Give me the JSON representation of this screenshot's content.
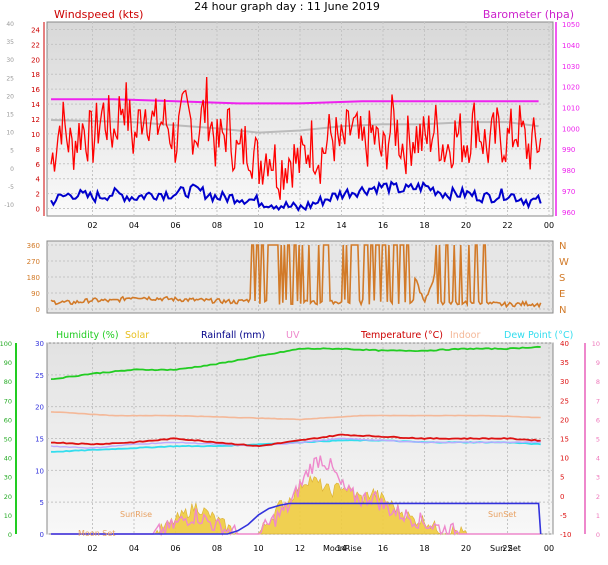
{
  "title": "24 hour graph day : 11 June 2019",
  "colors": {
    "wind": "#ff0000",
    "windAvg": "#0000cc",
    "baro": "#ee22ee",
    "baroGrey": "#bbbbbb",
    "dir": "#d27a28",
    "humidity": "#22cc22",
    "solar": "#e8c020",
    "rain": "#3333dd",
    "uv": "#ee88cc",
    "temp": "#dd1111",
    "indoor": "#f4b898",
    "dew": "#33ddee"
  },
  "chart_data": [
    {
      "type": "line",
      "ylabel": "Windspeed (kts)",
      "y2label": "Barometer (hpa)",
      "xticks": [
        "02",
        "04",
        "06",
        "08",
        "10",
        "12",
        "14",
        "16",
        "18",
        "20",
        "22",
        "00"
      ],
      "ylim": [
        -1,
        25
      ],
      "yticks": [
        "24",
        "22",
        "20",
        "18",
        "16",
        "14",
        "12",
        "10",
        "8",
        "6",
        "4",
        "2",
        "0"
      ],
      "y2lim": [
        958,
        1051
      ],
      "y2ticks": [
        "1050",
        "1040",
        "1030",
        "1020",
        "1010",
        "1000",
        "990",
        "980",
        "970",
        "960"
      ],
      "outer_ticks": [
        "40",
        "35",
        "30",
        "25",
        "20",
        "15",
        "10",
        "5",
        "0",
        "-5",
        "-10"
      ],
      "series": [
        {
          "role": "gust",
          "x": [
            0,
            0.5,
            1,
            1.5,
            2,
            2.5,
            3,
            3.5,
            4,
            4.5,
            5,
            5.5,
            6,
            6.5,
            7,
            7.5,
            8,
            8.5,
            9,
            9.5,
            10,
            10.5,
            11,
            11.5,
            12,
            12.5,
            13,
            13.5,
            14,
            14.5,
            15,
            15.5,
            16,
            16.5,
            17,
            17.5,
            18,
            18.5,
            19,
            19.5,
            20,
            20.5,
            21,
            21.5,
            22,
            22.5,
            23,
            23.5
          ],
          "y": [
            6,
            12,
            8,
            11,
            9,
            13,
            10,
            15,
            9,
            14,
            11,
            12,
            9,
            13,
            10,
            14,
            8,
            11,
            7,
            9,
            6,
            8,
            5,
            7,
            6,
            9,
            7,
            10,
            8,
            11,
            8,
            10,
            7,
            12,
            8,
            10,
            9,
            11,
            8,
            10,
            9,
            12,
            8,
            10,
            9,
            11,
            8,
            9
          ]
        },
        {
          "role": "average",
          "x": [
            0,
            1,
            2,
            3,
            4,
            5,
            6,
            7,
            8,
            9,
            10,
            11,
            12,
            13,
            14,
            15,
            16,
            17,
            18,
            19,
            20,
            21,
            22,
            23,
            23.5
          ],
          "y": [
            1,
            2,
            1.5,
            2,
            1.5,
            2,
            2,
            2.5,
            1.5,
            1.5,
            1,
            0.5,
            0,
            1,
            2,
            2.5,
            3,
            2.5,
            3,
            2,
            2,
            1.5,
            2,
            1,
            1
          ]
        },
        {
          "role": "barometer",
          "x": [
            0,
            3,
            6,
            9,
            12,
            15,
            18,
            21,
            23.5
          ],
          "y": [
            1014,
            1014,
            1013,
            1012,
            1012,
            1013,
            1013,
            1013,
            1013
          ]
        },
        {
          "role": "barometer-grey",
          "x": [
            0,
            4,
            8,
            10,
            12,
            14,
            16,
            18,
            20,
            22,
            23.5
          ],
          "y": [
            1004,
            1003,
            1000,
            998,
            999,
            1001,
            1002,
            1002,
            1003,
            1003,
            1001
          ]
        }
      ]
    },
    {
      "type": "scatter",
      "xticks": [
        "02",
        "04",
        "06",
        "08",
        "10",
        "12",
        "14",
        "16",
        "18",
        "20",
        "22",
        "00"
      ],
      "ylim": [
        0,
        360
      ],
      "yticks": [
        "360",
        "270",
        "180",
        "90",
        "0"
      ],
      "y2ticks": [
        "N",
        "W",
        "S",
        "E",
        "N"
      ],
      "series": [
        {
          "role": "direction",
          "x": [
            0,
            1,
            2,
            3,
            4,
            5,
            6,
            7,
            8,
            9,
            9.5,
            10,
            10.5,
            11,
            11.5,
            12,
            12.5,
            13,
            14,
            15,
            16,
            17,
            18,
            19,
            20,
            21,
            22,
            23,
            23.5
          ],
          "y": [
            40,
            35,
            50,
            45,
            70,
            60,
            55,
            50,
            45,
            40,
            50,
            60,
            50,
            45,
            40,
            360,
            50,
            360,
            360,
            360,
            360,
            360,
            30,
            360,
            20,
            30,
            25,
            30,
            25
          ]
        }
      ]
    },
    {
      "type": "line",
      "legend": [
        "Humidity (%)",
        "Solar",
        "Rainfall (mm)",
        "UV",
        "Temperature (°C)",
        "Indoor",
        "Dew Point (°C)"
      ],
      "xticks": [
        "02",
        "04",
        "06",
        "08",
        "10",
        "12",
        "14",
        "16",
        "18",
        "20",
        "22",
        "00"
      ],
      "rain_ticks": [
        "30",
        "25",
        "20",
        "15",
        "10",
        "5",
        "0"
      ],
      "humidity_ticks": [
        "100",
        "90",
        "80",
        "70",
        "60",
        "50",
        "40",
        "30",
        "20",
        "10",
        "0"
      ],
      "temp_ticks": [
        "40",
        "35",
        "30",
        "25",
        "20",
        "15",
        "10",
        "5",
        "0",
        "-5",
        "-10"
      ],
      "uv_ticks": [
        "10",
        "9",
        "8",
        "7",
        "6",
        "5",
        "4",
        "3",
        "2",
        "1",
        "0"
      ],
      "annotations": [
        "SunRise",
        "Moon Set",
        "SunSet",
        "Sun Set",
        "MoonRise"
      ],
      "series": [
        {
          "role": "humidity",
          "x": [
            0,
            2,
            4,
            6,
            8,
            10,
            12,
            14,
            16,
            18,
            20,
            22,
            23.5
          ],
          "y": [
            81,
            84,
            86,
            86,
            89,
            93,
            97,
            97,
            96,
            96,
            97,
            97,
            98
          ]
        },
        {
          "role": "indoor",
          "x": [
            0,
            3,
            6,
            9,
            12,
            15,
            18,
            21,
            23.5
          ],
          "y": [
            22,
            21,
            21,
            20.5,
            20,
            21,
            21,
            21,
            20.5
          ]
        },
        {
          "role": "temperature",
          "x": [
            0,
            2,
            4,
            6,
            8,
            10,
            12,
            14,
            16,
            18,
            20,
            22,
            23.5
          ],
          "y": [
            14,
            13.5,
            14,
            15,
            14,
            13,
            14.5,
            16,
            15.5,
            15,
            15,
            15,
            14.5
          ]
        },
        {
          "role": "temperature2",
          "x": [
            0,
            2,
            4,
            6,
            8,
            10,
            12,
            14,
            16,
            18,
            20,
            22,
            23.5
          ],
          "y": [
            13,
            12.5,
            13.5,
            14,
            13.5,
            13,
            14,
            15,
            14.5,
            14,
            14,
            14,
            14
          ]
        },
        {
          "role": "dewpoint",
          "x": [
            0,
            2,
            4,
            6,
            8,
            10,
            12,
            14,
            16,
            18,
            20,
            22,
            23.5
          ],
          "y": [
            11.5,
            12,
            12.5,
            13,
            13,
            13.5,
            14,
            14.5,
            14.5,
            14,
            14,
            14,
            13.5
          ]
        },
        {
          "role": "rainfall",
          "x": [
            0,
            8.5,
            9,
            9.5,
            10,
            10.5,
            11,
            11.5,
            23.5,
            23.6
          ],
          "y": [
            0,
            0,
            0.5,
            1.5,
            3,
            4,
            4.5,
            4.8,
            4.8,
            0
          ]
        },
        {
          "role": "solar",
          "x": [
            0,
            5,
            5.5,
            6,
            6.5,
            7,
            7.5,
            8,
            8.5,
            9,
            9.5,
            10,
            10.5,
            11,
            11.5,
            12,
            12.5,
            13,
            13.5,
            14,
            14.5,
            15,
            15.5,
            16,
            16.5,
            17,
            17.5,
            18,
            18.5,
            19,
            19.5,
            20,
            21,
            23.5
          ],
          "y": [
            0,
            0,
            1,
            2,
            3,
            4,
            3,
            2,
            1,
            0,
            0,
            0,
            2,
            4,
            5,
            7,
            8,
            7,
            6,
            7,
            6,
            5,
            6,
            5,
            4,
            3,
            2,
            2,
            1,
            0.5,
            0.5,
            0,
            0,
            0
          ]
        },
        {
          "role": "uv",
          "x": [
            0,
            5,
            5.5,
            6,
            6.5,
            7,
            7.5,
            8,
            8.5,
            9,
            9.5,
            10,
            10.5,
            11,
            11.5,
            12,
            12.5,
            13,
            13.5,
            14,
            14.5,
            15,
            15.5,
            16,
            16.5,
            17,
            17.5,
            18,
            18.5,
            19,
            19.5,
            20,
            21,
            23.5
          ],
          "y": [
            0,
            0,
            0.2,
            0.5,
            0.8,
            1,
            0.7,
            0.4,
            0.2,
            0,
            0,
            0,
            0.5,
            1,
            1.5,
            2.5,
            3.5,
            4,
            3.5,
            2.5,
            2,
            1.8,
            2,
            1.5,
            1.2,
            1,
            0.8,
            0.6,
            0.4,
            0.2,
            0.1,
            0,
            0,
            0
          ]
        }
      ]
    }
  ]
}
